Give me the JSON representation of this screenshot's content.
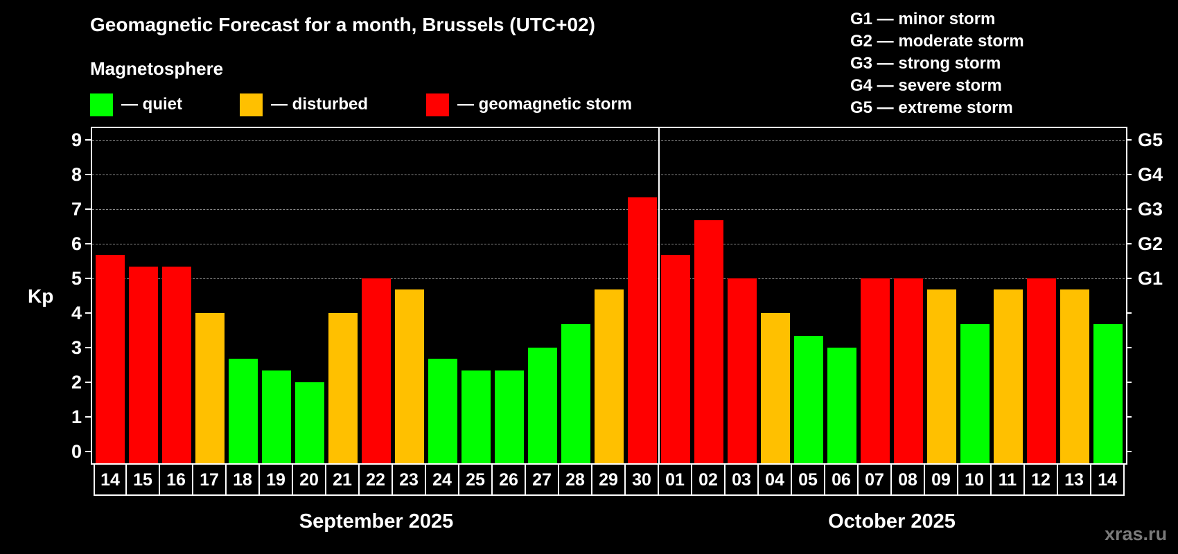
{
  "header": {
    "title": "Geomagnetic Forecast for a month, Brussels (UTC+02)",
    "subtitle": "Magnetosphere"
  },
  "legend": [
    {
      "label": "— quiet",
      "color": "#00ff00"
    },
    {
      "label": "— disturbed",
      "color": "#ffc000"
    },
    {
      "label": "— geomagnetic storm",
      "color": "#ff0000"
    }
  ],
  "storm_scale": [
    "G1 — minor storm",
    "G2 — moderate storm",
    "G3 — strong storm",
    "G4 — severe storm",
    "G5 — extreme storm"
  ],
  "axes": {
    "ylabel": "Kp",
    "yticks": [
      "0",
      "1",
      "2",
      "3",
      "4",
      "5",
      "6",
      "7",
      "8",
      "9"
    ],
    "right_labels": {
      "5": "G1",
      "6": "G2",
      "7": "G3",
      "8": "G4",
      "9": "G5"
    },
    "months": [
      "September 2025",
      "October 2025"
    ]
  },
  "watermark": "xras.ru",
  "colors": {
    "quiet": "#00ff00",
    "disturbed": "#ffc000",
    "storm": "#ff0000",
    "grid": "#8a8a8a"
  },
  "chart_data": {
    "type": "bar",
    "title": "Geomagnetic Forecast for a month, Brussels (UTC+02)",
    "xlabel": "September 2025 / October 2025",
    "ylabel": "Kp",
    "ylim": [
      0,
      9
    ],
    "grid": true,
    "categories": [
      "14",
      "15",
      "16",
      "17",
      "18",
      "19",
      "20",
      "21",
      "22",
      "23",
      "24",
      "25",
      "26",
      "27",
      "28",
      "29",
      "30",
      "01",
      "02",
      "03",
      "04",
      "05",
      "06",
      "07",
      "08",
      "09",
      "10",
      "11",
      "12",
      "13",
      "14"
    ],
    "months": [
      {
        "name": "September 2025",
        "days": 17
      },
      {
        "name": "October 2025",
        "days": 14
      }
    ],
    "values": [
      5.67,
      5.33,
      5.33,
      4,
      2.67,
      2.33,
      2,
      4,
      5,
      4.67,
      2.67,
      2.33,
      2.33,
      3,
      3.67,
      4.67,
      7.33,
      5.67,
      6.67,
      5,
      4,
      3.33,
      3,
      5,
      5,
      4.67,
      3.67,
      4.67,
      5,
      4.67,
      3.67
    ],
    "status": [
      "storm",
      "storm",
      "storm",
      "disturbed",
      "quiet",
      "quiet",
      "quiet",
      "disturbed",
      "storm",
      "disturbed",
      "quiet",
      "quiet",
      "quiet",
      "quiet",
      "quiet",
      "disturbed",
      "storm",
      "storm",
      "storm",
      "storm",
      "disturbed",
      "quiet",
      "quiet",
      "storm",
      "storm",
      "disturbed",
      "quiet",
      "disturbed",
      "storm",
      "disturbed",
      "quiet"
    ],
    "legend": [
      "quiet",
      "disturbed",
      "geomagnetic storm"
    ],
    "secondary_axis": {
      "G1": 5,
      "G2": 6,
      "G3": 7,
      "G4": 8,
      "G5": 9
    }
  }
}
